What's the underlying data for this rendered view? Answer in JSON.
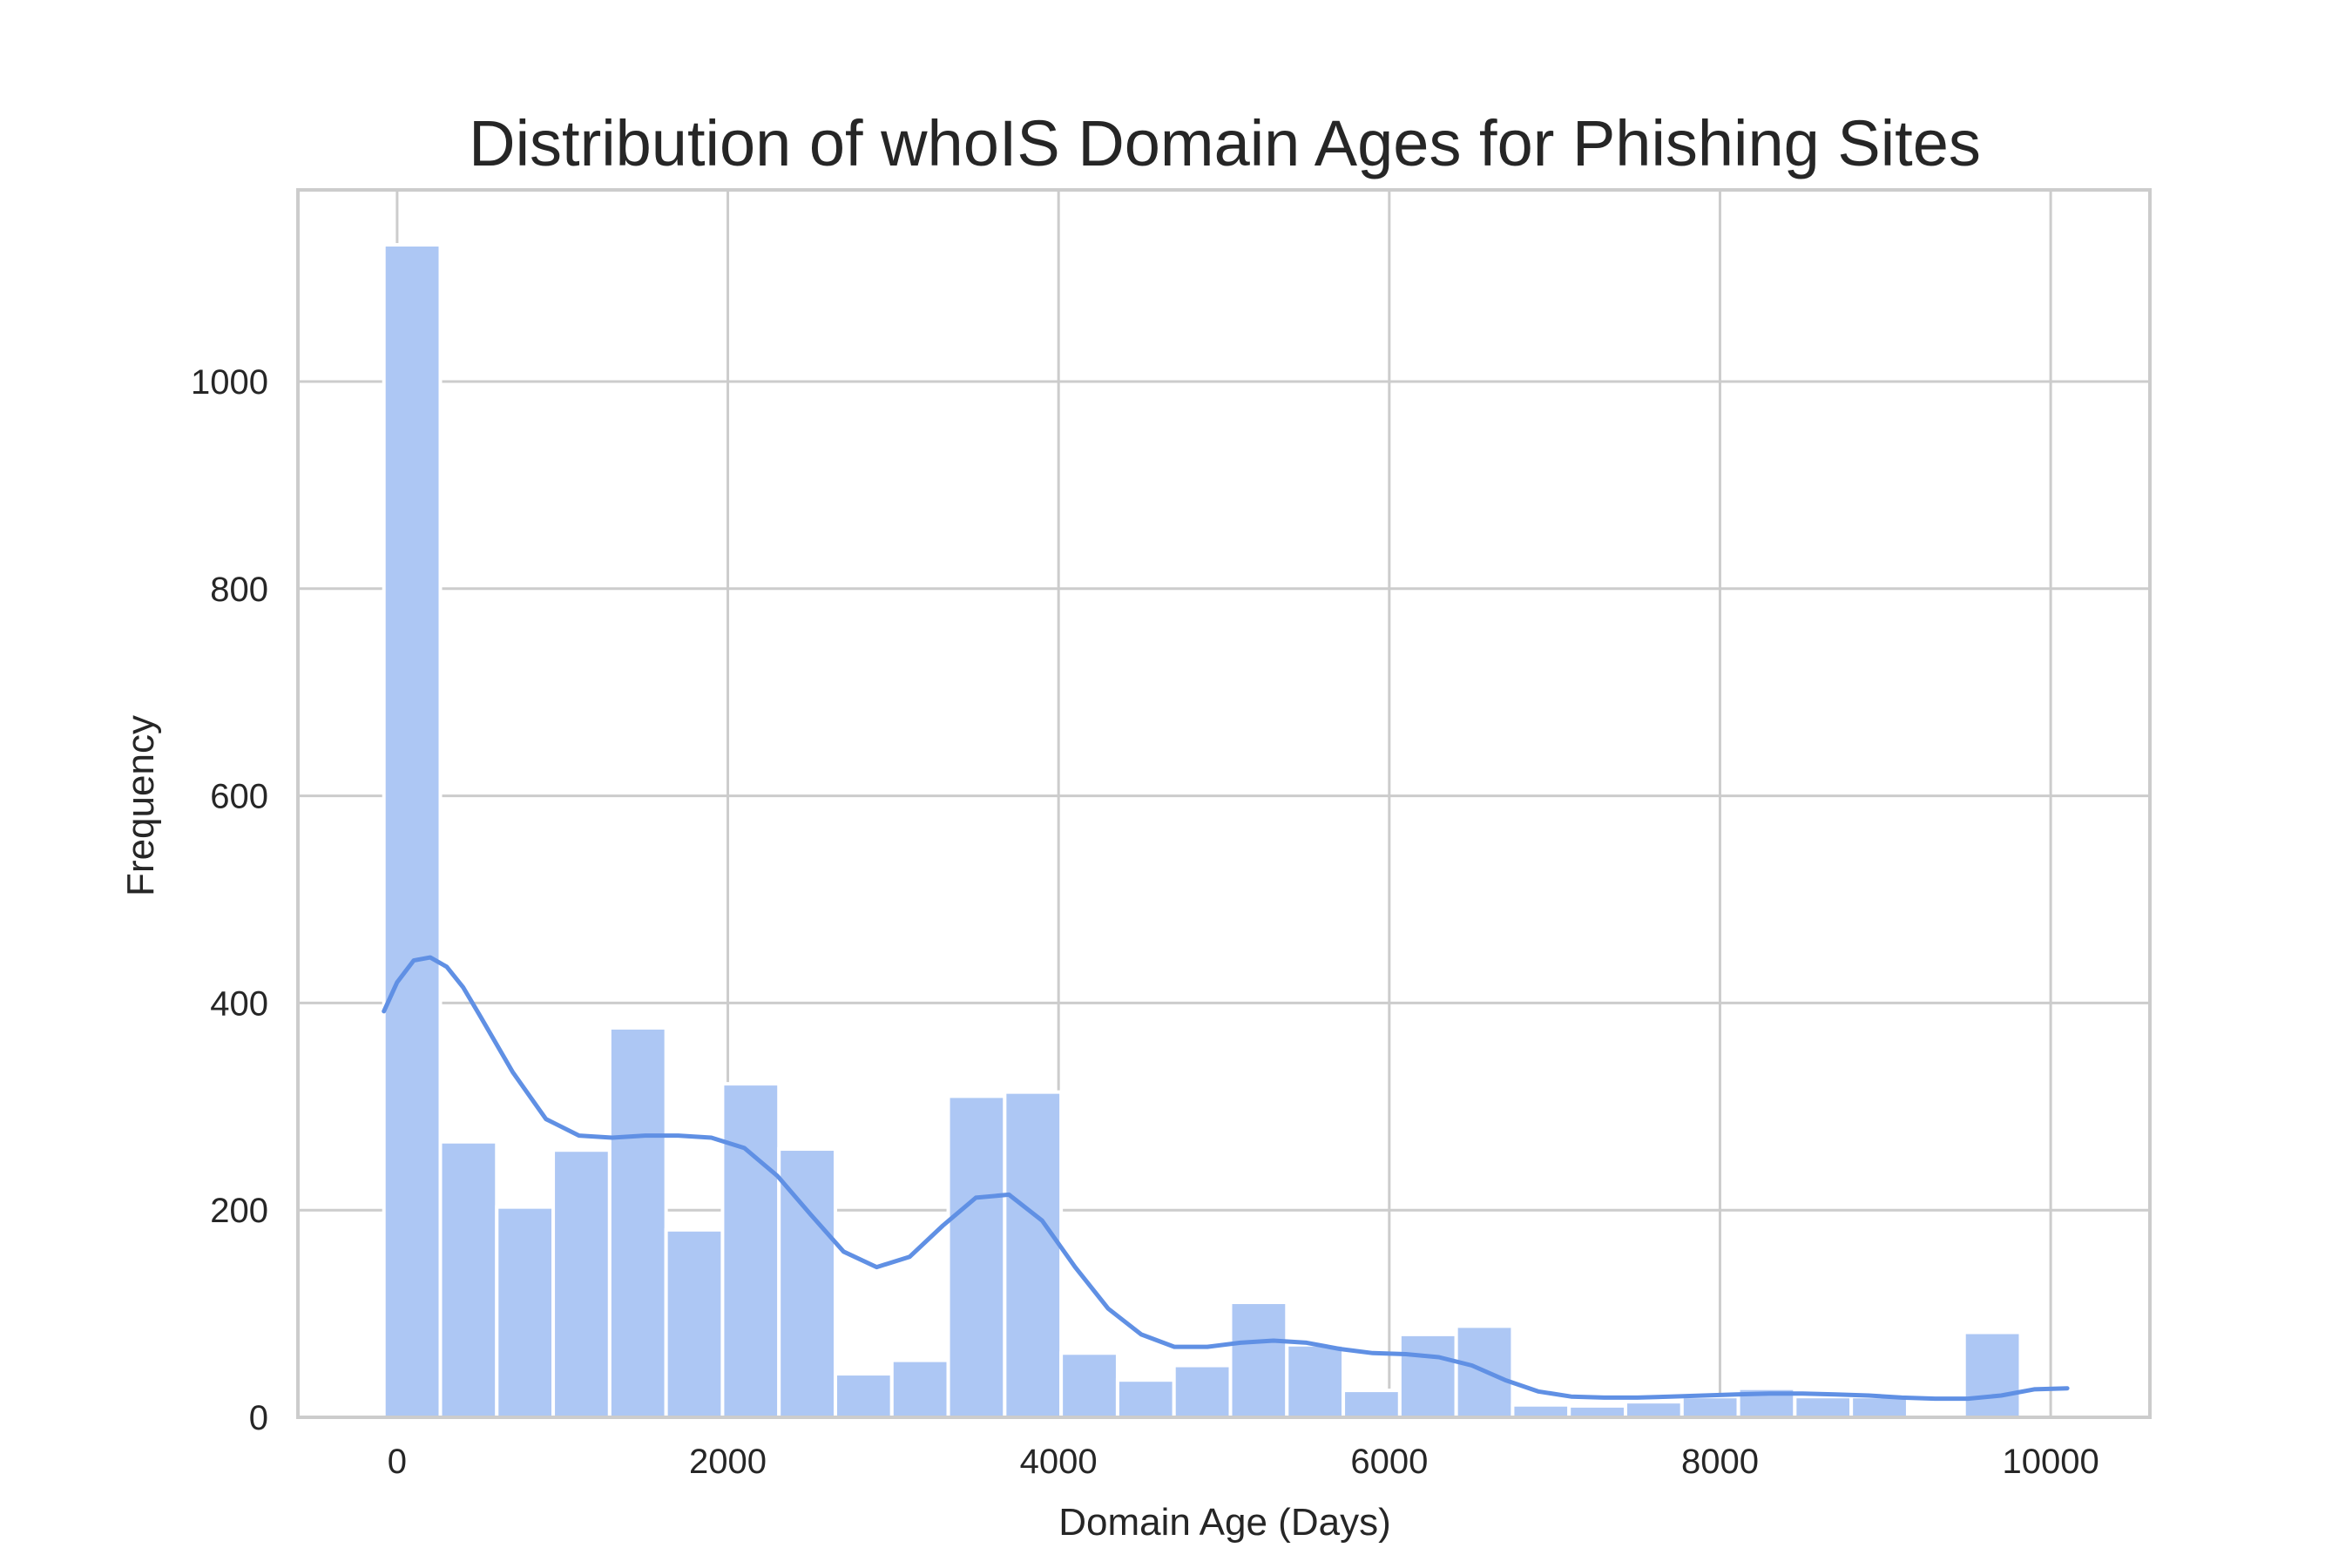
{
  "chart_data": {
    "type": "bar",
    "histogram": true,
    "title": "Distribution of whoIS Domain Ages for Phishing Sites",
    "xlabel": "Domain Age (Days)",
    "ylabel": "Frequency",
    "xlim": [
      -600,
      10600
    ],
    "ylim": [
      0,
      1185
    ],
    "xticks": [
      0,
      2000,
      4000,
      6000,
      8000,
      10000
    ],
    "yticks": [
      0,
      200,
      400,
      600,
      800,
      1000
    ],
    "grid": true,
    "bin_width": 341.3,
    "bin_start": -80,
    "values": [
      1132,
      266,
      203,
      258,
      376,
      181,
      322,
      259,
      42,
      55,
      310,
      314,
      62,
      36,
      50,
      111,
      70,
      26,
      80,
      88,
      12,
      11,
      15,
      20,
      28,
      20,
      20,
      0,
      82
    ],
    "kde": {
      "x": [
        -80,
        0,
        100,
        200,
        300,
        400,
        500,
        700,
        900,
        1100,
        1300,
        1500,
        1700,
        1900,
        2100,
        2300,
        2500,
        2700,
        2900,
        3100,
        3300,
        3500,
        3700,
        3900,
        4100,
        4300,
        4500,
        4700,
        4900,
        5100,
        5300,
        5500,
        5700,
        5900,
        6100,
        6300,
        6500,
        6700,
        6900,
        7100,
        7300,
        7500,
        7700,
        7900,
        8100,
        8300,
        8500,
        8700,
        8900,
        9100,
        9300,
        9500,
        9700,
        9900,
        10100
      ],
      "y": [
        392,
        420,
        441,
        444,
        435,
        415,
        388,
        333,
        288,
        272,
        270,
        272,
        272,
        270,
        260,
        233,
        196,
        160,
        145,
        155,
        185,
        212,
        215,
        190,
        145,
        105,
        80,
        68,
        68,
        72,
        74,
        72,
        66,
        62,
        61,
        58,
        50,
        36,
        25,
        20,
        19,
        19,
        20,
        21,
        22,
        23,
        23,
        22,
        21,
        19,
        18,
        18,
        21,
        27,
        28
      ]
    },
    "colors": {
      "bar": "#adc7f4",
      "line": "#6090e4"
    }
  }
}
